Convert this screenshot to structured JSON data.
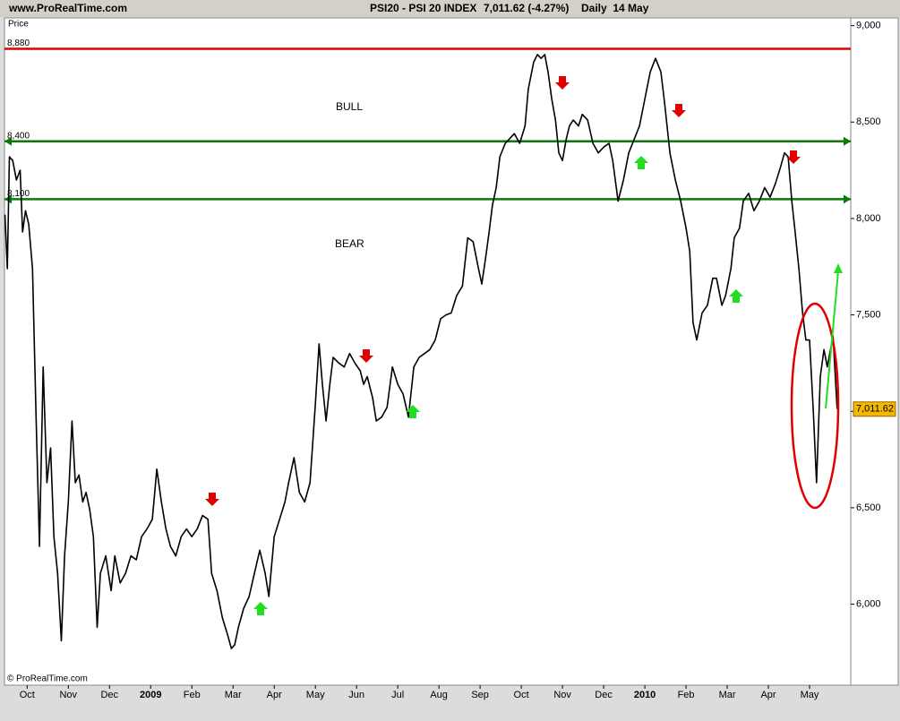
{
  "chart_data": {
    "type": "line",
    "site": "www.ProRealTime.com",
    "title": "PSI20 - PSI 20 INDEX",
    "price_change": "7,011.62 (-4.27%)",
    "period": "Daily  14 May",
    "ylabel": "Price",
    "watermark": "© ProRealTime.com",
    "annotations": [
      "BULL",
      "BEAR"
    ],
    "color": "#000000",
    "x": [
      -0.54,
      -0.48,
      -0.43,
      -0.35,
      -0.26,
      -0.17,
      -0.11,
      -0.04,
      0.04,
      0.13,
      0.22,
      0.3,
      0.39,
      0.48,
      0.57,
      0.65,
      0.74,
      0.83,
      0.91,
      1.0,
      1.09,
      1.17,
      1.26,
      1.35,
      1.43,
      1.52,
      1.61,
      1.7,
      1.78,
      1.91,
      2.04,
      2.13,
      2.26,
      2.39,
      2.52,
      2.65,
      2.78,
      2.91,
      3.04,
      3.15,
      3.26,
      3.37,
      3.48,
      3.61,
      3.74,
      3.87,
      4.0,
      4.13,
      4.26,
      4.39,
      4.48,
      4.61,
      4.74,
      4.87,
      4.96,
      5.04,
      5.13,
      5.26,
      5.39,
      5.52,
      5.65,
      5.78,
      5.87,
      6.0,
      6.13,
      6.26,
      6.35,
      6.48,
      6.61,
      6.74,
      6.87,
      7.0,
      7.09,
      7.17,
      7.26,
      7.35,
      7.43,
      7.57,
      7.7,
      7.83,
      7.96,
      8.09,
      8.17,
      8.26,
      8.39,
      8.48,
      8.61,
      8.74,
      8.87,
      9.0,
      9.13,
      9.26,
      9.39,
      9.52,
      9.65,
      9.78,
      9.91,
      10.04,
      10.17,
      10.3,
      10.43,
      10.57,
      10.7,
      10.83,
      10.96,
      11.04,
      11.13,
      11.22,
      11.3,
      11.39,
      11.48,
      11.61,
      11.7,
      11.83,
      11.96,
      12.09,
      12.17,
      12.3,
      12.39,
      12.48,
      12.57,
      12.65,
      12.74,
      12.83,
      12.91,
      13.0,
      13.09,
      13.17,
      13.26,
      13.39,
      13.48,
      13.61,
      13.74,
      13.87,
      14.0,
      14.13,
      14.22,
      14.35,
      14.48,
      14.61,
      14.74,
      14.87,
      15.0,
      15.13,
      15.26,
      15.39,
      15.48,
      15.61,
      15.74,
      15.87,
      16.0,
      16.09,
      16.17,
      16.26,
      16.39,
      16.52,
      16.65,
      16.74,
      16.87,
      16.96,
      17.09,
      17.17,
      17.3,
      17.39,
      17.52,
      17.65,
      17.78,
      17.91,
      18.04,
      18.17,
      18.3,
      18.39,
      18.48,
      18.57,
      18.65,
      18.74,
      18.83,
      18.91,
      19.0,
      19.09,
      19.17,
      19.26,
      19.35,
      19.43,
      19.57,
      19.67
    ],
    "values": [
      8020,
      7740,
      8320,
      8300,
      8200,
      8250,
      7930,
      8040,
      7970,
      7740,
      6950,
      6300,
      7230,
      6630,
      6810,
      6350,
      6160,
      5810,
      6250,
      6530,
      6950,
      6630,
      6670,
      6530,
      6580,
      6490,
      6350,
      5880,
      6160,
      6250,
      6070,
      6250,
      6110,
      6160,
      6250,
      6230,
      6350,
      6390,
      6440,
      6700,
      6530,
      6390,
      6300,
      6250,
      6350,
      6390,
      6350,
      6390,
      6460,
      6440,
      6160,
      6070,
      5930,
      5840,
      5770,
      5790,
      5880,
      5980,
      6040,
      6160,
      6280,
      6160,
      6040,
      6350,
      6440,
      6530,
      6630,
      6760,
      6580,
      6530,
      6630,
      7040,
      7350,
      7140,
      6950,
      7140,
      7280,
      7250,
      7230,
      7300,
      7250,
      7210,
      7140,
      7180,
      7070,
      6950,
      6970,
      7020,
      7230,
      7140,
      7090,
      6970,
      7230,
      7280,
      7300,
      7320,
      7370,
      7480,
      7500,
      7510,
      7600,
      7650,
      7900,
      7880,
      7740,
      7660,
      7790,
      7930,
      8070,
      8160,
      8320,
      8390,
      8410,
      8440,
      8390,
      8480,
      8670,
      8810,
      8850,
      8830,
      8850,
      8760,
      8620,
      8510,
      8340,
      8300,
      8410,
      8480,
      8510,
      8480,
      8540,
      8510,
      8390,
      8340,
      8370,
      8390,
      8300,
      8090,
      8200,
      8340,
      8410,
      8480,
      8620,
      8760,
      8830,
      8760,
      8600,
      8340,
      8200,
      8090,
      7950,
      7830,
      7460,
      7370,
      7510,
      7550,
      7690,
      7690,
      7550,
      7600,
      7740,
      7900,
      7950,
      8090,
      8130,
      8040,
      8090,
      8160,
      8110,
      8180,
      8270,
      8340,
      8320,
      8090,
      7930,
      7740,
      7510,
      7370,
      7370,
      7000,
      6630,
      7180,
      7320,
      7230,
      7390,
      7011.62
    ],
    "last_value_label": "7,011.62",
    "levels": [
      {
        "value": 8880,
        "label": "8,880",
        "color": "#e00000"
      },
      {
        "value": 8400,
        "label": "8,400",
        "color": "#0a7a0a"
      },
      {
        "value": 8100,
        "label": "8,100",
        "color": "#0a7a0a"
      }
    ],
    "xlim": [
      -0.55,
      20
    ],
    "xticks": [
      {
        "value": 0,
        "label": "Oct"
      },
      {
        "value": 1,
        "label": "Nov"
      },
      {
        "value": 2,
        "label": "Dec"
      },
      {
        "value": 3,
        "label": "2009"
      },
      {
        "value": 4,
        "label": "Feb"
      },
      {
        "value": 5,
        "label": "Mar"
      },
      {
        "value": 6,
        "label": "Apr"
      },
      {
        "value": 7,
        "label": "May"
      },
      {
        "value": 8,
        "label": "Jun"
      },
      {
        "value": 9,
        "label": "Jul"
      },
      {
        "value": 10,
        "label": "Aug"
      },
      {
        "value": 11,
        "label": "Sep"
      },
      {
        "value": 12,
        "label": "Oct"
      },
      {
        "value": 13,
        "label": "Nov"
      },
      {
        "value": 14,
        "label": "Dec"
      },
      {
        "value": 15,
        "label": "2010"
      },
      {
        "value": 16,
        "label": "Feb"
      },
      {
        "value": 17,
        "label": "Mar"
      },
      {
        "value": 18,
        "label": "Apr"
      },
      {
        "value": 19,
        "label": "May"
      }
    ],
    "ylim": [
      5580,
      9040
    ],
    "yticks": [
      {
        "value": 6000,
        "label": "6,000"
      },
      {
        "value": 6500,
        "label": "6,500"
      },
      {
        "value": 7000,
        "label": "7,000"
      },
      {
        "value": 7500,
        "label": "7,500"
      },
      {
        "value": 8000,
        "label": "8,000"
      },
      {
        "value": 8500,
        "label": "8,500"
      },
      {
        "value": 9000,
        "label": "9,000"
      }
    ]
  }
}
